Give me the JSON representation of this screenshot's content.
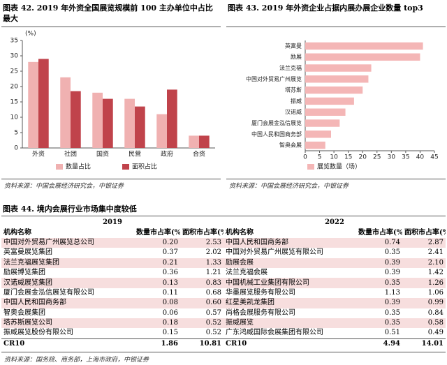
{
  "chart_data": [
    {
      "type": "bar",
      "title": "图表 42. 2019 年外资全国展览规模前 100 主办单位中占比最大",
      "ylabel": "(%)",
      "source": "资料来源：中国会展经济研究会，中银证券",
      "categories": [
        "外资",
        "社团",
        "国资",
        "民营",
        "政府",
        "合资"
      ],
      "series": [
        {
          "name": "数量占比",
          "color": "#f0b1b1",
          "values": [
            28,
            23,
            18,
            16,
            11,
            4
          ]
        },
        {
          "name": "面积占比",
          "color": "#c0434b",
          "values": [
            29,
            18.5,
            16,
            13.5,
            19,
            4
          ]
        }
      ],
      "ylim": [
        0,
        35
      ],
      "yticks": [
        0,
        5,
        10,
        15,
        20,
        25,
        30,
        35
      ],
      "legend": "bottom"
    },
    {
      "type": "hbar",
      "title": "图表 43. 2019 年外资企业占据内展办展企业数量 top3",
      "source": "资料来源：中国会展经济研究会，中银证券",
      "categories": [
        "英富曼",
        "励展",
        "法兰克福",
        "中国对外贸易广州展览",
        "塔苏斯",
        "振威",
        "汉诺威",
        "厦门会展金泓信展览",
        "中国人民和国商务部",
        "智奥会展"
      ],
      "series": [
        {
          "name": "展览数量（场）",
          "color": "#f4b6b6",
          "values": [
            41,
            40,
            23,
            22,
            20,
            17,
            14,
            12,
            9,
            7
          ]
        }
      ],
      "xlim": [
        0,
        45
      ],
      "xticks": [
        0,
        5,
        10,
        15,
        20,
        25,
        30,
        35,
        40,
        45
      ],
      "legend": "bottom-left"
    }
  ],
  "table": {
    "title": "图表 44. 境内会展行业市场集中度较低",
    "groups": [
      "2019",
      "2022"
    ],
    "columns": [
      "机构名称",
      "数量市占率(%)",
      "面积市占率(%)",
      "机构名称",
      "数量市占率(%)",
      "面积市占率(%)"
    ],
    "rows": [
      [
        "中国对外贸易广州展览总公司",
        "0.20",
        "2.53",
        "中国人民和国商务部",
        "0.74",
        "2.87"
      ],
      [
        "英富曼展览集团",
        "0.37",
        "2.02",
        "中国对外贸易广州展览有限公司",
        "0.35",
        "2.41"
      ],
      [
        "法兰克福展览集团",
        "0.21",
        "1.33",
        "励展会展",
        "0.39",
        "2.10"
      ],
      [
        "励展博览集团",
        "0.36",
        "1.21",
        "法兰克福会展",
        "0.39",
        "1.42"
      ],
      [
        "汉诺威展览集团",
        "0.13",
        "0.83",
        "中国机械工业集团有限公司",
        "0.35",
        "1.26"
      ],
      [
        "厦门会展金泓信展览有限公司",
        "0.11",
        "0.68",
        "华墨展览服务有限公司",
        "1.13",
        "1.06"
      ],
      [
        "中国人民和国商务部",
        "0.08",
        "0.60",
        "红星美凯龙集团",
        "0.39",
        "0.99"
      ],
      [
        "智奥会展集团",
        "0.06",
        "0.57",
        "尚格会展服务有限公司",
        "0.35",
        "0.84"
      ],
      [
        "塔苏斯展览公司",
        "0.18",
        "0.52",
        "振威展览",
        "0.35",
        "0.58"
      ],
      [
        "振威展览股份有限公司",
        "0.15",
        "0.52",
        "广东鸿威国际会展集团有限公司",
        "0.51",
        "0.49"
      ],
      [
        "CR10",
        "1.86",
        "10.81",
        "CR10",
        "4.94",
        "14.01"
      ]
    ],
    "source": "资料来源：国务院、商务部，上海市政府，中银证券"
  }
}
